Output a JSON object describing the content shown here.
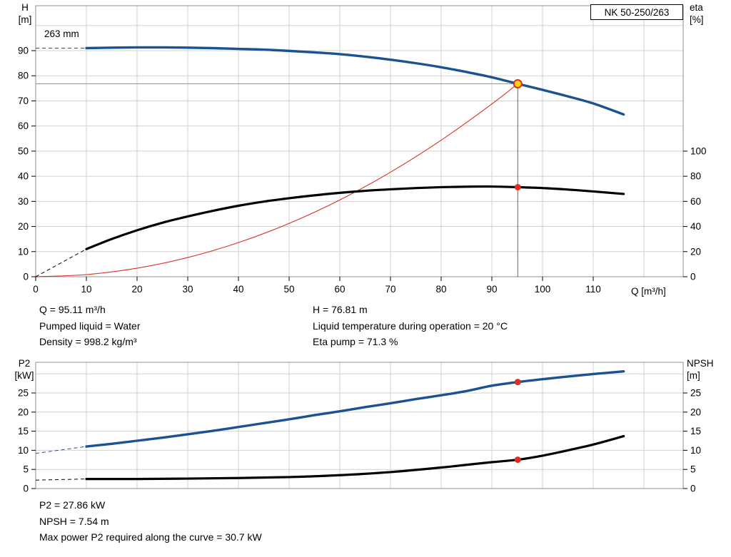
{
  "title_box": "NK 50-250/263",
  "impeller_label": "263 mm",
  "axis_labels": {
    "h_name": "H",
    "h_unit": "[m]",
    "eta_name": "eta",
    "eta_unit": "[%]",
    "q_label": "Q [m³/h]",
    "p2_name": "P2",
    "p2_unit": "[kW]",
    "npsh_name": "NPSH",
    "npsh_unit": "[m]"
  },
  "annotations": {
    "mid_left": [
      "Q = 95.11 m³/h",
      "Pumped liquid = Water",
      "Density = 998.2 kg/m³"
    ],
    "mid_right": [
      "H = 76.81 m",
      "Liquid temperature during operation = 20 °C",
      "Eta pump = 71.3 %"
    ],
    "bottom": [
      "P2 = 27.86 kW",
      "NPSH = 7.54 m",
      "Max power P2 required along the curve = 30.7 kW"
    ]
  },
  "colors": {
    "curve_blue": "#1b5292",
    "curve_black": "#000000",
    "duty_red": "#d83024",
    "marker_yellow": "#ffd200",
    "grid": "#d2d2d2"
  },
  "chart_data": [
    {
      "type": "line",
      "title": "NK 50-250/263",
      "xlabel": "Q [m³/h]",
      "ylabel": "H [m]",
      "y2label": "eta [%]",
      "xlim": [
        0,
        127.7
      ],
      "ylim": [
        0,
        107.9
      ],
      "x_ticks": [
        0,
        10,
        20,
        30,
        40,
        50,
        60,
        70,
        80,
        90,
        100,
        110
      ],
      "y_ticks": [
        0,
        10,
        20,
        30,
        40,
        50,
        60,
        70,
        80,
        90
      ],
      "y2_ticks": [
        0,
        20,
        40,
        60,
        80,
        100
      ],
      "y2_to_y_factor": 0.5,
      "grid_x": [
        10,
        20,
        30,
        40,
        50,
        60,
        70,
        80,
        90,
        100,
        110,
        120
      ],
      "grid_y": [
        10,
        20,
        30,
        40,
        50,
        60,
        70,
        80,
        90,
        100
      ],
      "duty_point": {
        "q": 95.11,
        "h": 76.81,
        "eta_pump": 71.3
      },
      "crosshair": {
        "q": 95.11,
        "h": 76.81
      },
      "series": [
        {
          "name": "duty-parabola",
          "axis": "y",
          "color": "#d83024",
          "width": 1.1,
          "points": [
            [
              0,
              0
            ],
            [
              10,
              0.85
            ],
            [
              20,
              3.4
            ],
            [
              30,
              7.64
            ],
            [
              40,
              13.59
            ],
            [
              50,
              21.23
            ],
            [
              60,
              30.57
            ],
            [
              70,
              41.61
            ],
            [
              80,
              54.35
            ],
            [
              90,
              68.78
            ],
            [
              95.11,
              76.81
            ]
          ]
        },
        {
          "name": "head",
          "axis": "y",
          "color": "#1b5292",
          "width": 3.4,
          "lead_dashed": [
            [
              0,
              91
            ],
            [
              10,
              91
            ]
          ],
          "points": [
            [
              10,
              91.0
            ],
            [
              15,
              91.2
            ],
            [
              20,
              91.3
            ],
            [
              25,
              91.3
            ],
            [
              30,
              91.2
            ],
            [
              35,
              91.0
            ],
            [
              40,
              90.7
            ],
            [
              45,
              90.4
            ],
            [
              50,
              89.9
            ],
            [
              55,
              89.3
            ],
            [
              60,
              88.6
            ],
            [
              65,
              87.6
            ],
            [
              70,
              86.4
            ],
            [
              75,
              85.0
            ],
            [
              80,
              83.4
            ],
            [
              85,
              81.5
            ],
            [
              90,
              79.4
            ],
            [
              95.11,
              76.81
            ],
            [
              100,
              74.4
            ],
            [
              105,
              71.8
            ],
            [
              110,
              69.0
            ],
            [
              116,
              64.6
            ]
          ]
        },
        {
          "name": "efficiency",
          "axis": "y2",
          "color": "#000000",
          "width": 3.2,
          "lead_dashed": [
            [
              0,
              0
            ],
            [
              10,
              22
            ]
          ],
          "points": [
            [
              10,
              22
            ],
            [
              15,
              30
            ],
            [
              20,
              37
            ],
            [
              25,
              43
            ],
            [
              30,
              48
            ],
            [
              35,
              52.5
            ],
            [
              40,
              56.5
            ],
            [
              45,
              59.8
            ],
            [
              50,
              62.5
            ],
            [
              55,
              64.8
            ],
            [
              60,
              66.8
            ],
            [
              65,
              68.4
            ],
            [
              70,
              69.6
            ],
            [
              75,
              70.6
            ],
            [
              80,
              71.3
            ],
            [
              85,
              71.7
            ],
            [
              90,
              71.8
            ],
            [
              95.11,
              71.3
            ],
            [
              100,
              70.6
            ],
            [
              105,
              69.4
            ],
            [
              110,
              67.9
            ],
            [
              116,
              65.9
            ]
          ]
        }
      ],
      "markers": [
        {
          "name": "duty-point-marker",
          "q": 95.11,
          "v": 76.81,
          "axis": "y",
          "fill": "#ffd200",
          "stroke": "#d83024",
          "r": 5.5
        },
        {
          "name": "efficiency-point-marker",
          "q": 95.11,
          "v": 71.3,
          "axis": "y2",
          "fill": "#d83024",
          "r": 4.5
        }
      ]
    },
    {
      "type": "line",
      "title": "",
      "xlabel": "",
      "ylabel": "P2 [kW]",
      "y2label": "NPSH [m]",
      "xlim": [
        0,
        127.7
      ],
      "ylim": [
        0,
        33
      ],
      "x_ticks": [],
      "y_ticks": [
        0,
        5,
        10,
        15,
        20,
        25
      ],
      "y2_ticks": [
        0,
        5,
        10,
        15,
        20,
        25
      ],
      "y2_to_y_factor": 1,
      "grid_x": [
        10,
        20,
        30,
        40,
        50,
        60,
        70,
        80,
        90,
        100,
        110,
        120
      ],
      "grid_y": [
        5,
        10,
        15,
        20,
        25,
        30
      ],
      "duty_point": {
        "q": 95.11,
        "p2": 27.86,
        "npsh": 7.54,
        "max_p2_along_curve": 30.7
      },
      "series": [
        {
          "name": "p2",
          "axis": "y",
          "color": "#1b5292",
          "width": 3.4,
          "lead_dashed": [
            [
              0,
              9.2
            ],
            [
              10,
              11.0
            ]
          ],
          "points": [
            [
              10,
              11.0
            ],
            [
              15,
              11.7
            ],
            [
              20,
              12.5
            ],
            [
              25,
              13.3
            ],
            [
              30,
              14.2
            ],
            [
              35,
              15.1
            ],
            [
              40,
              16.1
            ],
            [
              45,
              17.1
            ],
            [
              50,
              18.1
            ],
            [
              55,
              19.2
            ],
            [
              60,
              20.2
            ],
            [
              65,
              21.3
            ],
            [
              70,
              22.3
            ],
            [
              75,
              23.4
            ],
            [
              80,
              24.4
            ],
            [
              85,
              25.5
            ],
            [
              90,
              26.9
            ],
            [
              95.11,
              27.86
            ],
            [
              100,
              28.6
            ],
            [
              105,
              29.3
            ],
            [
              110,
              29.95
            ],
            [
              116,
              30.65
            ]
          ]
        },
        {
          "name": "npsh",
          "axis": "y2",
          "color": "#000000",
          "width": 3.2,
          "lead_dashed": [
            [
              0,
              2.2
            ],
            [
              10,
              2.5
            ]
          ],
          "points": [
            [
              10,
              2.5
            ],
            [
              20,
              2.5
            ],
            [
              30,
              2.6
            ],
            [
              40,
              2.75
            ],
            [
              50,
              3.0
            ],
            [
              60,
              3.5
            ],
            [
              70,
              4.3
            ],
            [
              80,
              5.5
            ],
            [
              85,
              6.2
            ],
            [
              90,
              6.9
            ],
            [
              95.11,
              7.54
            ],
            [
              100,
              8.6
            ],
            [
              105,
              10.0
            ],
            [
              110,
              11.5
            ],
            [
              116,
              13.7
            ]
          ]
        }
      ],
      "markers": [
        {
          "name": "p2-point-marker",
          "q": 95.11,
          "v": 27.86,
          "axis": "y",
          "fill": "#d83024",
          "r": 4.5
        },
        {
          "name": "npsh-point-marker",
          "q": 95.11,
          "v": 7.54,
          "axis": "y2",
          "fill": "#d83024",
          "r": 4.5
        }
      ]
    }
  ]
}
